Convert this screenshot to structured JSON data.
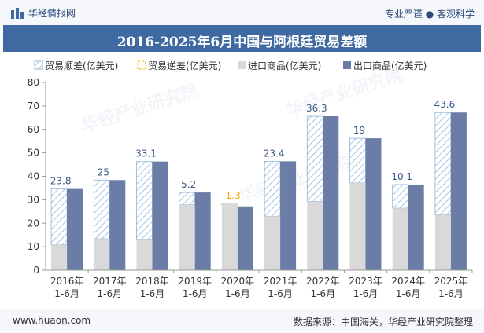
{
  "header": {
    "site_name": "华经情报网",
    "tagline": "专业严谨 ● 客观科学"
  },
  "title": "2016-2025年6月中国与阿根廷贸易差额",
  "footer": {
    "url": "www.huaon.com",
    "source": "数据来源：中国海关，华经产业研究院整理"
  },
  "watermark": "华经产业研究院",
  "colors": {
    "title_bg": "#3f6aa1",
    "export": "#6b7ca6",
    "import": "#d9d9d9",
    "surplus_hatch": "#8fb3d4",
    "deficit_border": "#f2c200",
    "deficit_label": "#f2a900"
  },
  "chart_data": {
    "type": "bar",
    "categories": [
      "2016年\n1-6月",
      "2017年\n1-6月",
      "2018年\n1-6月",
      "2019年\n1-6月",
      "2020年\n1-6月",
      "2021年\n1-6月",
      "2022年\n1-6月",
      "2023年\n1-6月",
      "2024年\n1-6月",
      "2025年\n1-6月"
    ],
    "ylim": [
      0,
      80
    ],
    "yticks": [
      0,
      10,
      20,
      30,
      40,
      50,
      60,
      70,
      80
    ],
    "legend_position": "top",
    "legend": [
      "贸易顺差(亿美元)",
      "贸易逆差(亿美元)",
      "进口商品(亿美元)",
      "出口商品(亿美元)"
    ],
    "series": [
      {
        "name": "进口商品(亿美元)",
        "values": [
          10.8,
          13.4,
          13.2,
          27.9,
          28.5,
          23.0,
          29.3,
          37.2,
          26.4,
          23.6
        ]
      },
      {
        "name": "出口商品(亿美元)",
        "values": [
          34.6,
          38.4,
          46.3,
          33.1,
          27.2,
          46.4,
          65.6,
          56.2,
          36.5,
          67.2
        ]
      }
    ],
    "balance_labels": [
      "23.8",
      "25",
      "33.1",
      "5.2",
      "-1.3",
      "23.4",
      "36.3",
      "19",
      "10.1",
      "43.6"
    ]
  }
}
